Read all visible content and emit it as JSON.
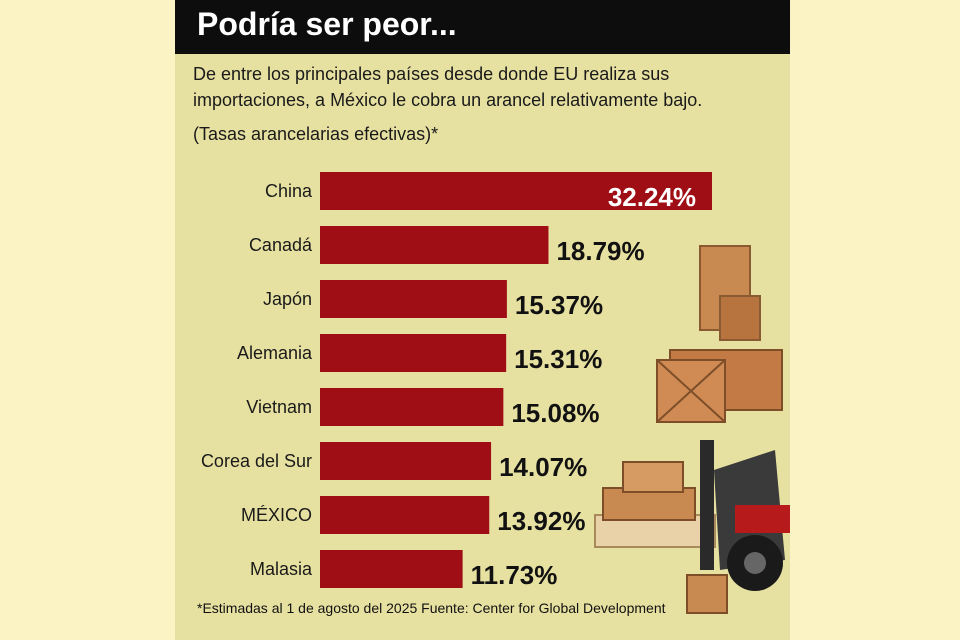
{
  "header": {
    "title": "Podría ser peor...",
    "subtitle_line1": "De entre los principales países desde donde EU realiza sus",
    "subtitle_line2": "importaciones, a México le cobra un arancel relativamente bajo.",
    "note": "(Tasas arancelarias efectivas)*"
  },
  "footnote": "*Estimadas al 1 de agosto del 2025 Fuente: Center for Global Development",
  "colors": {
    "bar": "#9e0e14",
    "panel": "#e7e1a1",
    "background": "#fcf3c4",
    "title_bar": "#0d0d0d"
  },
  "chart_data": {
    "type": "bar",
    "orientation": "horizontal",
    "categories": [
      "China",
      "Canadá",
      "Japón",
      "Alemania",
      "Vietnam",
      "Corea del Sur",
      "MÉXICO",
      "Malasia"
    ],
    "values": [
      32.24,
      18.79,
      15.37,
      15.31,
      15.08,
      14.07,
      13.92,
      11.73
    ],
    "value_labels": [
      "32.24%",
      "18.79%",
      "15.37%",
      "15.31%",
      "15.08%",
      "14.07%",
      "13.92%",
      "11.73%"
    ],
    "xlim": [
      0,
      32.24
    ],
    "grid": false,
    "legend": "none"
  }
}
